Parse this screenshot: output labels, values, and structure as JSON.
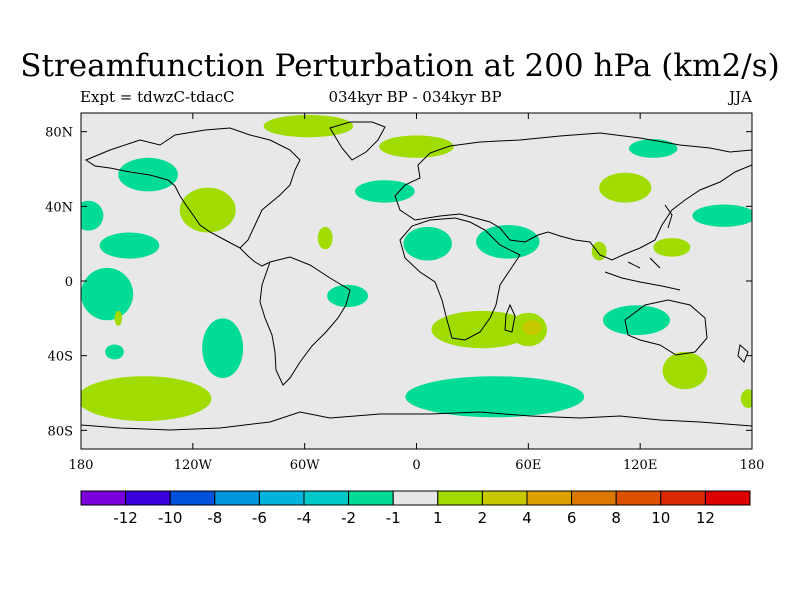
{
  "title": "Streamfunction Perturbation at 200 hPa (km2/s)",
  "subtitle_left": "Expt = tdwzC-tdacC",
  "subtitle_center": "034kyr BP - 034kyr BP",
  "subtitle_right": "JJA",
  "map": {
    "lon_range": [
      -180,
      180
    ],
    "lat_range": [
      -90,
      90
    ],
    "background_color": "#e8e8e8",
    "x_ticks": [
      {
        "value": -180,
        "label": "180"
      },
      {
        "value": -120,
        "label": "120W"
      },
      {
        "value": -60,
        "label": "60W"
      },
      {
        "value": 0,
        "label": "0"
      },
      {
        "value": 60,
        "label": "60E"
      },
      {
        "value": 120,
        "label": "120E"
      },
      {
        "value": 180,
        "label": "180"
      }
    ],
    "y_ticks": [
      {
        "value": 80,
        "label": "80N"
      },
      {
        "value": 40,
        "label": "40N"
      },
      {
        "value": 0,
        "label": "0"
      },
      {
        "value": -40,
        "label": "40S"
      },
      {
        "value": -80,
        "label": "80S"
      }
    ],
    "anomaly_regions": [
      {
        "lon": -58,
        "lat": 83,
        "rx": 24,
        "ry": 6,
        "level": "positive",
        "color": "#a0dc00"
      },
      {
        "lon": 0,
        "lat": 72,
        "rx": 20,
        "ry": 6,
        "level": "positive",
        "color": "#a0dc00"
      },
      {
        "lon": 127,
        "lat": 71,
        "rx": 13,
        "ry": 5,
        "level": "negative",
        "color": "#00dc96"
      },
      {
        "lon": -144,
        "lat": 57,
        "rx": 16,
        "ry": 9,
        "level": "negative",
        "color": "#00dc96"
      },
      {
        "lon": -17,
        "lat": 48,
        "rx": 16,
        "ry": 6,
        "level": "negative",
        "color": "#00dc96"
      },
      {
        "lon": 112,
        "lat": 50,
        "rx": 14,
        "ry": 8,
        "level": "positive",
        "color": "#a0dc00"
      },
      {
        "lon": -176,
        "lat": 35,
        "rx": 8,
        "ry": 8,
        "level": "negative",
        "color": "#00dc96"
      },
      {
        "lon": -112,
        "lat": 38,
        "rx": 15,
        "ry": 12,
        "level": "positive",
        "color": "#a0dc00"
      },
      {
        "lon": 165,
        "lat": 35,
        "rx": 17,
        "ry": 6,
        "level": "negative",
        "color": "#00dc96"
      },
      {
        "lon": -154,
        "lat": 19,
        "rx": 16,
        "ry": 7,
        "level": "negative",
        "color": "#00dc96"
      },
      {
        "lon": -49,
        "lat": 23,
        "rx": 4,
        "ry": 6,
        "level": "positive",
        "color": "#a0dc00"
      },
      {
        "lon": 6,
        "lat": 20,
        "rx": 13,
        "ry": 9,
        "level": "negative",
        "color": "#00dc96"
      },
      {
        "lon": 49,
        "lat": 21,
        "rx": 17,
        "ry": 9,
        "level": "negative",
        "color": "#00dc96"
      },
      {
        "lon": 98,
        "lat": 16,
        "rx": 4,
        "ry": 5,
        "level": "positive",
        "color": "#a0dc00"
      },
      {
        "lon": 137,
        "lat": 18,
        "rx": 10,
        "ry": 5,
        "level": "positive",
        "color": "#a0dc00"
      },
      {
        "lon": -166,
        "lat": -7,
        "rx": 14,
        "ry": 14,
        "level": "negative",
        "color": "#00dc96"
      },
      {
        "lon": -160,
        "lat": -20,
        "rx": 2,
        "ry": 4,
        "level": "positive",
        "color": "#a0dc00"
      },
      {
        "lon": -37,
        "lat": -8,
        "rx": 11,
        "ry": 6,
        "level": "negative",
        "color": "#00dc96"
      },
      {
        "lon": -162,
        "lat": -38,
        "rx": 5,
        "ry": 4,
        "level": "negative",
        "color": "#00dc96"
      },
      {
        "lon": -104,
        "lat": -36,
        "rx": 11,
        "ry": 16,
        "level": "negative",
        "color": "#00dc96"
      },
      {
        "lon": 35,
        "lat": -26,
        "rx": 27,
        "ry": 10,
        "level": "positive",
        "color": "#a0dc00"
      },
      {
        "lon": 60,
        "lat": -26,
        "rx": 10,
        "ry": 9,
        "level": "positive",
        "color": "#a0dc00"
      },
      {
        "lon": 62,
        "lat": -25,
        "rx": 5,
        "ry": 4,
        "level": "strong-positive",
        "color": "#c8c800"
      },
      {
        "lon": 118,
        "lat": -21,
        "rx": 18,
        "ry": 8,
        "level": "negative",
        "color": "#00dc96"
      },
      {
        "lon": 144,
        "lat": -48,
        "rx": 12,
        "ry": 10,
        "level": "positive",
        "color": "#a0dc00"
      },
      {
        "lon": 178,
        "lat": -63,
        "rx": 4,
        "ry": 5,
        "level": "positive",
        "color": "#a0dc00"
      },
      {
        "lon": -146,
        "lat": -63,
        "rx": 36,
        "ry": 12,
        "level": "positive",
        "color": "#a0dc00"
      },
      {
        "lon": 42,
        "lat": -62,
        "rx": 48,
        "ry": 11,
        "level": "negative",
        "color": "#00dc96"
      }
    ]
  },
  "colorbar": {
    "colors": [
      "#7a00dc",
      "#3c00dc",
      "#0050dc",
      "#0096dc",
      "#00b4dc",
      "#00c8c8",
      "#00dc96",
      "#e6e6e6",
      "#a0dc00",
      "#c8c800",
      "#dca000",
      "#dc7800",
      "#dc5000",
      "#dc2800",
      "#dc0000"
    ],
    "labels": [
      "-12",
      "-10",
      "-8",
      "-6",
      "-4",
      "-2",
      "-1",
      "1",
      "2",
      "4",
      "6",
      "8",
      "10",
      "12"
    ]
  }
}
